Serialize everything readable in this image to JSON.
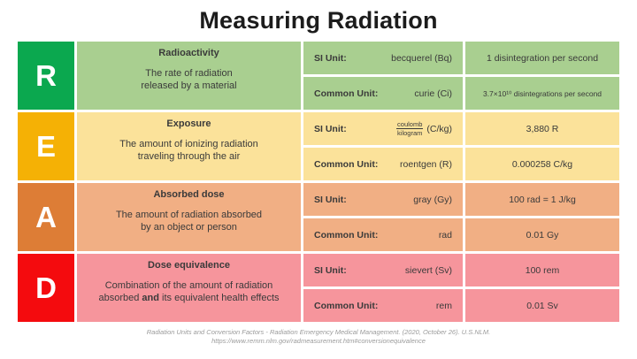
{
  "title": "Measuring Radiation",
  "colors": {
    "r_letter_bg": "#0ba84f",
    "r_row_bg": "#a9cf90",
    "e_letter_bg": "#f5b105",
    "e_row_bg": "#fbe29a",
    "a_letter_bg": "#dd7d36",
    "a_row_bg": "#f1af84",
    "d_letter_bg": "#f40b0e",
    "d_row_bg": "#f6959c"
  },
  "table": {
    "rows": [
      {
        "letter": "R",
        "topic": "Radioactivity",
        "desc_line1": "The rate of radiation",
        "desc_line2": "released by a material",
        "si_label": "SI Unit:",
        "si_unit": "becquerel (Bq)",
        "si_conversion": "1 disintegration per second",
        "common_label": "Common Unit:",
        "common_unit": "curie (Ci)",
        "common_conversion": "3.7×10¹⁰ disintegrations per second"
      },
      {
        "letter": "E",
        "topic": "Exposure",
        "desc_line1": "The amount of ionizing radiation",
        "desc_line2": "traveling through the air",
        "si_label": "SI Unit:",
        "si_unit_fraction_top": "coulomb",
        "si_unit_fraction_bottom": "kilogram",
        "si_unit_suffix": "(C/kg)",
        "si_conversion": "3,880 R",
        "common_label": "Common Unit:",
        "common_unit": "roentgen (R)",
        "common_conversion": "0.000258 C/kg"
      },
      {
        "letter": "A",
        "topic": "Absorbed dose",
        "desc_line1": "The amount of radiation absorbed",
        "desc_line2": "by an object or person",
        "si_label": "SI Unit:",
        "si_unit": "gray (Gy)",
        "si_conversion": "100 rad = 1 J/kg",
        "common_label": "Common Unit:",
        "common_unit": "rad",
        "common_conversion": "0.01 Gy"
      },
      {
        "letter": "D",
        "topic": "Dose equivalence",
        "desc_line1": "Combination of the amount of radiation",
        "desc_line2_pre": "absorbed ",
        "desc_line2_bold": "and",
        "desc_line2_post": " its equivalent health effects",
        "si_label": "SI Unit:",
        "si_unit": "sievert (Sv)",
        "si_conversion": "100 rem",
        "common_label": "Common Unit:",
        "common_unit": "rem",
        "common_conversion": "0.01 Sv"
      }
    ]
  },
  "footer": {
    "line1": "Radiation Units and Conversion Factors - Radiation Emergency Medical Management. (2020, October 26). U.S.NLM.",
    "line2": "https://www.remm.nlm.gov/radmeasurement.htm#conversionequivalence"
  }
}
